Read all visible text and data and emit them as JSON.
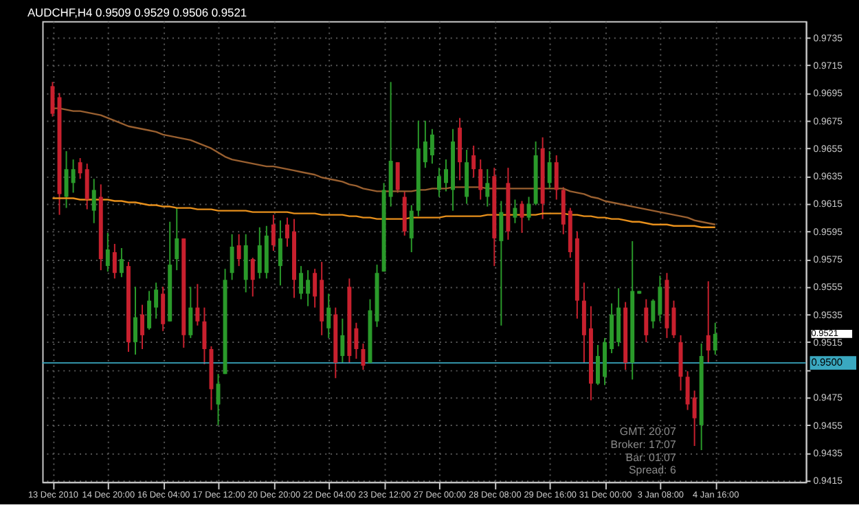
{
  "chart_data": {
    "type": "candlestick",
    "title": "AUDCHF,H4  0.9509 0.9529 0.9506 0.9521",
    "categories": [
      "13 Dec 2010",
      null,
      null,
      null,
      null,
      null,
      null,
      null,
      "14 Dec 20:00",
      null,
      null,
      null,
      null,
      null,
      null,
      null,
      "16 Dec 04:00",
      null,
      null,
      null,
      null,
      null,
      null,
      null,
      "17 Dec 12:00",
      null,
      null,
      null,
      null,
      null,
      null,
      null,
      "20 Dec 20:00",
      null,
      null,
      null,
      null,
      null,
      null,
      null,
      "22 Dec 04:00",
      null,
      null,
      null,
      null,
      null,
      null,
      null,
      "23 Dec 12:00",
      null,
      null,
      null,
      null,
      null,
      null,
      null,
      "27 Dec 00:00",
      null,
      null,
      null,
      null,
      null,
      null,
      null,
      "28 Dec 08:00",
      null,
      null,
      null,
      null,
      null,
      null,
      null,
      "29 Dec 16:00",
      null,
      null,
      null,
      null,
      null,
      null,
      null,
      "31 Dec 00:00",
      null,
      null,
      null,
      null,
      null,
      null,
      null,
      "3 Jan 08:00",
      null,
      null,
      null,
      null,
      null,
      null,
      null,
      "4 Jan 16:00"
    ],
    "ohlc": [
      [
        0.97,
        0.9703,
        0.9678,
        0.968
      ],
      [
        0.9692,
        0.9695,
        0.9607,
        0.9622
      ],
      [
        0.962,
        0.9653,
        0.9612,
        0.964
      ],
      [
        0.963,
        0.9647,
        0.9623,
        0.964
      ],
      [
        0.9645,
        0.9648,
        0.9633,
        0.9637
      ],
      [
        0.964,
        0.9644,
        0.9611,
        0.9618
      ],
      [
        0.961,
        0.9633,
        0.9601,
        0.9625
      ],
      [
        0.962,
        0.9629,
        0.9567,
        0.9575
      ],
      [
        0.957,
        0.9594,
        0.9566,
        0.9582
      ],
      [
        0.958,
        0.9586,
        0.9561,
        0.9565
      ],
      [
        0.9565,
        0.9583,
        0.9562,
        0.9575
      ],
      [
        0.957,
        0.9573,
        0.9508,
        0.9515
      ],
      [
        0.9515,
        0.9555,
        0.9506,
        0.9533
      ],
      [
        0.9535,
        0.9542,
        0.951,
        0.952
      ],
      [
        0.9525,
        0.9552,
        0.9524,
        0.9545
      ],
      [
        0.954,
        0.9558,
        0.9532,
        0.9553
      ],
      [
        0.955,
        0.9555,
        0.9523,
        0.9528
      ],
      [
        0.953,
        0.9602,
        0.953,
        0.9571
      ],
      [
        0.9575,
        0.9612,
        0.9567,
        0.959
      ],
      [
        0.959,
        0.959,
        0.9511,
        0.952
      ],
      [
        0.952,
        0.9555,
        0.9518,
        0.954
      ],
      [
        0.954,
        0.9557,
        0.9527,
        0.953
      ],
      [
        0.953,
        0.954,
        0.9499,
        0.951
      ],
      [
        0.951,
        0.9512,
        0.9466,
        0.9481
      ],
      [
        0.947,
        0.9492,
        0.9455,
        0.9485
      ],
      [
        0.9492,
        0.9568,
        0.9492,
        0.956
      ],
      [
        0.9565,
        0.9593,
        0.956,
        0.9584
      ],
      [
        0.9585,
        0.9593,
        0.957,
        0.9575
      ],
      [
        0.956,
        0.9593,
        0.9551,
        0.9585
      ],
      [
        0.9575,
        0.9576,
        0.9548,
        0.956
      ],
      [
        0.9565,
        0.9598,
        0.9561,
        0.9585
      ],
      [
        0.9565,
        0.9599,
        0.9561,
        0.9592
      ],
      [
        0.96,
        0.9607,
        0.9581,
        0.9585
      ],
      [
        0.957,
        0.9603,
        0.9556,
        0.959
      ],
      [
        0.96,
        0.9605,
        0.9584,
        0.959
      ],
      [
        0.9595,
        0.9604,
        0.9547,
        0.956
      ],
      [
        0.955,
        0.957,
        0.9546,
        0.9565
      ],
      [
        0.955,
        0.9567,
        0.9541,
        0.956
      ],
      [
        0.9565,
        0.9568,
        0.954,
        0.9548
      ],
      [
        0.956,
        0.9573,
        0.952,
        0.953
      ],
      [
        0.9525,
        0.955,
        0.9518,
        0.954
      ],
      [
        0.9535,
        0.954,
        0.9489,
        0.95
      ],
      [
        0.9505,
        0.9532,
        0.95,
        0.952
      ],
      [
        0.9555,
        0.9561,
        0.95,
        0.9505
      ],
      [
        0.9525,
        0.9529,
        0.9503,
        0.951
      ],
      [
        0.951,
        0.9514,
        0.9495,
        0.9498
      ],
      [
        0.95,
        0.9546,
        0.95,
        0.9538
      ],
      [
        0.953,
        0.9571,
        0.9526,
        0.9565
      ],
      [
        0.9566,
        0.963,
        0.9566,
        0.9625
      ],
      [
        0.962,
        0.9703,
        0.9613,
        0.9646
      ],
      [
        0.9645,
        0.9645,
        0.9623,
        0.9625
      ],
      [
        0.962,
        0.9624,
        0.9592,
        0.9595
      ],
      [
        0.959,
        0.9614,
        0.958,
        0.961
      ],
      [
        0.961,
        0.9675,
        0.9606,
        0.9655
      ],
      [
        0.9645,
        0.9675,
        0.9641,
        0.966
      ],
      [
        0.965,
        0.9669,
        0.9644,
        0.9665
      ],
      [
        0.9625,
        0.9641,
        0.962,
        0.9635
      ],
      [
        0.963,
        0.9647,
        0.9624,
        0.964
      ],
      [
        0.9625,
        0.9669,
        0.961,
        0.966
      ],
      [
        0.967,
        0.9677,
        0.9632,
        0.9645
      ],
      [
        0.962,
        0.9654,
        0.9615,
        0.9645
      ],
      [
        0.965,
        0.9657,
        0.9634,
        0.964
      ],
      [
        0.964,
        0.9647,
        0.9618,
        0.9625
      ],
      [
        0.962,
        0.964,
        0.9613,
        0.963
      ],
      [
        0.9635,
        0.9641,
        0.957,
        0.959
      ],
      [
        0.9588,
        0.9617,
        0.9527,
        0.9609
      ],
      [
        0.963,
        0.9641,
        0.9589,
        0.9595
      ],
      [
        0.9605,
        0.9618,
        0.9601,
        0.9612
      ],
      [
        0.9615,
        0.9617,
        0.9594,
        0.9605
      ],
      [
        0.9605,
        0.962,
        0.9603,
        0.9615
      ],
      [
        0.9615,
        0.966,
        0.9614,
        0.965
      ],
      [
        0.9655,
        0.9663,
        0.9604,
        0.9615
      ],
      [
        0.963,
        0.9653,
        0.9626,
        0.9645
      ],
      [
        0.9645,
        0.965,
        0.9618,
        0.9625
      ],
      [
        0.9625,
        0.9627,
        0.9593,
        0.96
      ],
      [
        0.961,
        0.9612,
        0.9576,
        0.958
      ],
      [
        0.959,
        0.9595,
        0.9532,
        0.9545
      ],
      [
        0.9545,
        0.9558,
        0.95,
        0.952
      ],
      [
        0.9525,
        0.9541,
        0.9473,
        0.9485
      ],
      [
        0.9485,
        0.9513,
        0.9484,
        0.9505
      ],
      [
        0.949,
        0.9518,
        0.9484,
        0.9515
      ],
      [
        0.951,
        0.9543,
        0.9507,
        0.9535
      ],
      [
        0.9515,
        0.9554,
        0.9512,
        0.954
      ],
      [
        0.954,
        0.9544,
        0.9495,
        0.95
      ],
      [
        0.95,
        0.9588,
        0.9488,
        0.9552
      ],
      [
        0.955,
        0.9552,
        0.955,
        0.9552
      ],
      [
        0.954,
        0.9546,
        0.9515,
        0.952
      ],
      [
        0.953,
        0.9546,
        0.9525,
        0.9545
      ],
      [
        0.9535,
        0.9563,
        0.953,
        0.9555
      ],
      [
        0.956,
        0.9565,
        0.9518,
        0.9525
      ],
      [
        0.954,
        0.9545,
        0.9518,
        0.952
      ],
      [
        0.9515,
        0.952,
        0.948,
        0.949
      ],
      [
        0.949,
        0.9494,
        0.9466,
        0.947
      ],
      [
        0.9475,
        0.948,
        0.944,
        0.946
      ],
      [
        0.9455,
        0.9514,
        0.9437,
        0.9505
      ],
      [
        0.952,
        0.9559,
        0.95,
        0.9509
      ],
      [
        0.9509,
        0.9529,
        0.9506,
        0.9521
      ]
    ],
    "colors": [
      "#c8202e",
      "#c8202e",
      "#2a9a2a",
      "#2a9a2a",
      "#c8202e",
      "#c8202e",
      "#2a9a2a",
      "#c8202e",
      "#2a9a2a",
      "#c8202e",
      "#2a9a2a",
      "#c8202e",
      "#2a9a2a",
      "#c8202e",
      "#2a9a2a",
      "#2a9a2a",
      "#c8202e",
      "#2a9a2a",
      "#2a9a2a",
      "#c8202e",
      "#2a9a2a",
      "#c8202e",
      "#c8202e",
      "#c8202e",
      "#2a9a2a",
      "#2a9a2a",
      "#2a9a2a",
      "#c8202e",
      "#2a9a2a",
      "#c8202e",
      "#2a9a2a",
      "#2a9a2a",
      "#c8202e",
      "#2a9a2a",
      "#c8202e",
      "#c8202e",
      "#2a9a2a",
      "#2a9a2a",
      "#c8202e",
      "#c8202e",
      "#2a9a2a",
      "#c8202e",
      "#2a9a2a",
      "#c8202e",
      "#c8202e",
      "#c8202e",
      "#2a9a2a",
      "#2a9a2a",
      "#2a9a2a",
      "#2a9a2a",
      "#c8202e",
      "#c8202e",
      "#2a9a2a",
      "#2a9a2a",
      "#2a9a2a",
      "#2a9a2a",
      "#2a9a2a",
      "#2a9a2a",
      "#2a9a2a",
      "#c8202e",
      "#2a9a2a",
      "#c8202e",
      "#c8202e",
      "#2a9a2a",
      "#c8202e",
      "#2a9a2a",
      "#c8202e",
      "#2a9a2a",
      "#c8202e",
      "#2a9a2a",
      "#2a9a2a",
      "#c8202e",
      "#2a9a2a",
      "#c8202e",
      "#c8202e",
      "#c8202e",
      "#c8202e",
      "#c8202e",
      "#c8202e",
      "#2a9a2a",
      "#2a9a2a",
      "#2a9a2a",
      "#2a9a2a",
      "#c8202e",
      "#2a9a2a",
      "#2a9a2a",
      "#c8202e",
      "#2a9a2a",
      "#2a9a2a",
      "#c8202e",
      "#c8202e",
      "#c8202e",
      "#c8202e",
      "#c8202e",
      "#2a9a2a",
      "#c8202e",
      "#2a9a2a"
    ],
    "series": [
      {
        "type": "line",
        "color": "#e8901c",
        "values": [
          0.9619,
          0.9619,
          0.9619,
          0.9619,
          0.9618,
          0.9618,
          0.9618,
          0.9618,
          0.9618,
          0.9617,
          0.9617,
          0.9616,
          0.9616,
          0.9615,
          0.9614,
          0.9614,
          0.9613,
          0.9613,
          0.9612,
          0.9612,
          0.9612,
          0.9611,
          0.9611,
          0.9611,
          0.961,
          0.961,
          0.961,
          0.961,
          0.961,
          0.9609,
          0.9609,
          0.9609,
          0.9609,
          0.9609,
          0.9609,
          0.9608,
          0.9608,
          0.9608,
          0.9608,
          0.9607,
          0.9607,
          0.9607,
          0.9607,
          0.9606,
          0.9606,
          0.9605,
          0.9605,
          0.9604,
          0.9604,
          0.9604,
          0.9604,
          0.9604,
          0.9605,
          0.9605,
          0.9605,
          0.9605,
          0.9605,
          0.9606,
          0.9606,
          0.9606,
          0.9606,
          0.9606,
          0.9606,
          0.9607,
          0.9607,
          0.9607,
          0.9607,
          0.9607,
          0.9607,
          0.9607,
          0.9607,
          0.9608,
          0.9608,
          0.9608,
          0.9608,
          0.9607,
          0.9607,
          0.9606,
          0.9606,
          0.9605,
          0.9605,
          0.9604,
          0.9604,
          0.9603,
          0.9602,
          0.9602,
          0.9601,
          0.96,
          0.96,
          0.96,
          0.9599,
          0.9599,
          0.9599,
          0.9599,
          0.9598,
          0.9598,
          0.9598
        ]
      },
      {
        "type": "line",
        "color": "#9a6030",
        "values": [
          0.9684,
          0.9684,
          0.9683,
          0.9682,
          0.9682,
          0.9681,
          0.968,
          0.9679,
          0.9677,
          0.9675,
          0.9673,
          0.9671,
          0.967,
          0.9669,
          0.9668,
          0.9667,
          0.9665,
          0.9664,
          0.9663,
          0.9662,
          0.9661,
          0.9659,
          0.9657,
          0.9655,
          0.9652,
          0.9649,
          0.9647,
          0.9646,
          0.9645,
          0.9644,
          0.9643,
          0.9642,
          0.9642,
          0.9641,
          0.964,
          0.9639,
          0.9638,
          0.9637,
          0.9636,
          0.9634,
          0.9633,
          0.9632,
          0.9631,
          0.9629,
          0.9628,
          0.9626,
          0.9625,
          0.9624,
          0.9624,
          0.9624,
          0.9624,
          0.9624,
          0.9624,
          0.9625,
          0.9625,
          0.9626,
          0.9626,
          0.9626,
          0.9627,
          0.9627,
          0.9627,
          0.9627,
          0.9627,
          0.9626,
          0.9626,
          0.9626,
          0.9626,
          0.9626,
          0.9626,
          0.9626,
          0.9626,
          0.9626,
          0.9626,
          0.9626,
          0.9626,
          0.9624,
          0.9623,
          0.9622,
          0.962,
          0.9619,
          0.9617,
          0.9616,
          0.9615,
          0.9614,
          0.9613,
          0.9612,
          0.9611,
          0.961,
          0.9609,
          0.9608,
          0.9607,
          0.9606,
          0.9605,
          0.9603,
          0.9602,
          0.9601,
          0.96
        ]
      }
    ],
    "ylim": [
      0.9414,
      0.9747
    ],
    "yticks": [
      0.9735,
      0.9715,
      0.9695,
      0.9675,
      0.9655,
      0.9635,
      0.9615,
      0.9595,
      0.9575,
      0.9555,
      0.9535,
      0.9515,
      {
        "value": 0.9495,
        "label": null
      },
      0.9475,
      0.9455,
      0.9435,
      0.9415
    ],
    "grid": true,
    "ref_lines": [
      {
        "axis": "y",
        "value": 0.95,
        "label": "0.9500",
        "color": "#3aa8c0"
      }
    ],
    "annotations": [
      "0.9521",
      "GMT:  20:07",
      "Broker:  17:07",
      "Bar:  01:07",
      "Spread:  6"
    ]
  }
}
